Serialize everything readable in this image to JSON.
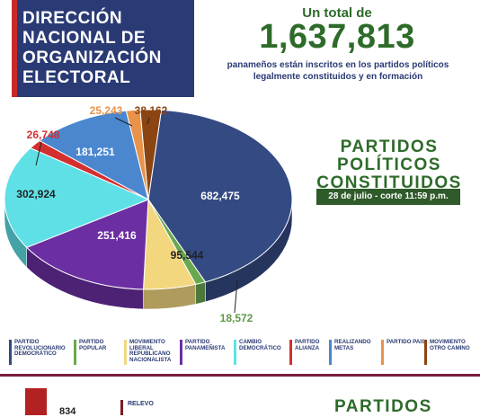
{
  "header": {
    "title_lines": [
      "DIRECCIÓN",
      "NACIONAL DE",
      "ORGANIZACIÓN",
      "ELECTORAL"
    ]
  },
  "total": {
    "label": "Un total de",
    "number": "1,637,813",
    "sub_line1": "panameños están inscritos en los partidos políticos",
    "sub_line2": "legalmente constituidos y en formación"
  },
  "parties_title": [
    "PARTIDOS",
    "POLÍTICOS",
    "CONSTITUIDOS"
  ],
  "date_badge": "28 de julio - corte 11:59 p.m.",
  "chart_data": {
    "type": "pie",
    "title": "",
    "slices": [
      {
        "name": "PARTIDO REVOLUCIONARIO DEMOCRÁTICO",
        "value": 682475,
        "label": "682,475",
        "color": "#344a83"
      },
      {
        "name": "PARTIDO POPULAR",
        "value": 18572,
        "label": "18,572",
        "color": "#6aa84f"
      },
      {
        "name": "MOVIMIENTO LIBERAL REPUBLICANO NACIONALISTA",
        "value": 95544,
        "label": "95,544",
        "color": "#f3d77e"
      },
      {
        "name": "PARTIDO PANAMEÑISTA",
        "value": 251416,
        "label": "251,416",
        "color": "#6b2fa3"
      },
      {
        "name": "CAMBIO DEMOCRÁTICO",
        "value": 302924,
        "label": "302,924",
        "color": "#5fe0e6"
      },
      {
        "name": "PARTIDO ALIANZA",
        "value": 26748,
        "label": "26,748",
        "color": "#d32f2f"
      },
      {
        "name": "REALIZANDO METAS",
        "value": 181251,
        "label": "181,251",
        "color": "#4a87cf"
      },
      {
        "name": "PARTIDO PAIS",
        "value": 25243,
        "label": "25,243",
        "color": "#e8924a"
      },
      {
        "name": "MOVIMIENTO OTRO CAMINO",
        "value": 38162,
        "label": "38,162",
        "color": "#8b4513"
      }
    ],
    "legend": [
      {
        "label": "PARTIDO REVOLUCIONARIO DEMOCRÁTICO",
        "color": "#344a83"
      },
      {
        "label": "PARTIDO POPULAR",
        "color": "#6aa84f"
      },
      {
        "label": "MOVIMIENTO LIBERAL REPUBLICANO NACIONALISTA",
        "color": "#f3d77e"
      },
      {
        "label": "PARTIDO PANAMEÑISTA",
        "color": "#6b2fa3"
      },
      {
        "label": "CAMBIO DEMOCRÁTICO",
        "color": "#5fe0e6"
      },
      {
        "label": "PARTIDO ALIANZA",
        "color": "#d32f2f"
      },
      {
        "label": "REALIZANDO METAS",
        "color": "#4a87cf"
      },
      {
        "label": "PARTIDO PAIS",
        "color": "#e8924a"
      },
      {
        "label": "MOVIMIENTO OTRO CAMINO",
        "color": "#8b4513"
      }
    ]
  },
  "bottom": {
    "value": "834",
    "legend_label": "RELEVO",
    "title": "PARTIDOS"
  }
}
